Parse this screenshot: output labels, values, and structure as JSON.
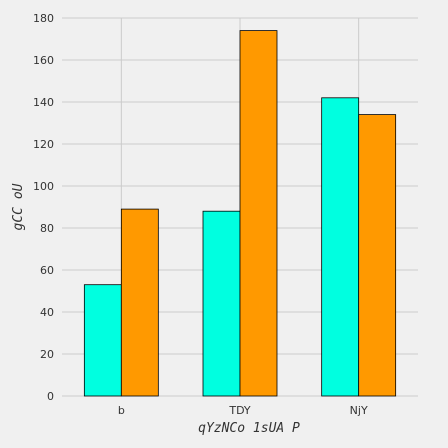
{
  "chart_data": {
    "type": "bar",
    "categories": [
      "b",
      "TDY",
      "NjY"
    ],
    "series": [
      {
        "values": [
          53,
          88,
          142
        ],
        "color": "#00ffe0"
      },
      {
        "values": [
          89,
          174,
          134
        ],
        "color": "#ff9900"
      }
    ],
    "xlabel": "qYzNCo  1sUA P",
    "ylabel": "gCC oU",
    "ylim": [
      0,
      180
    ],
    "yticks": [
      0,
      20,
      40,
      60,
      80,
      100,
      120,
      140,
      160,
      180
    ],
    "grid": true,
    "legend": "none",
    "style": {
      "background": "#f0f0f0",
      "grid_color": "#cbcbcb",
      "bar_edge": "#000000"
    }
  }
}
